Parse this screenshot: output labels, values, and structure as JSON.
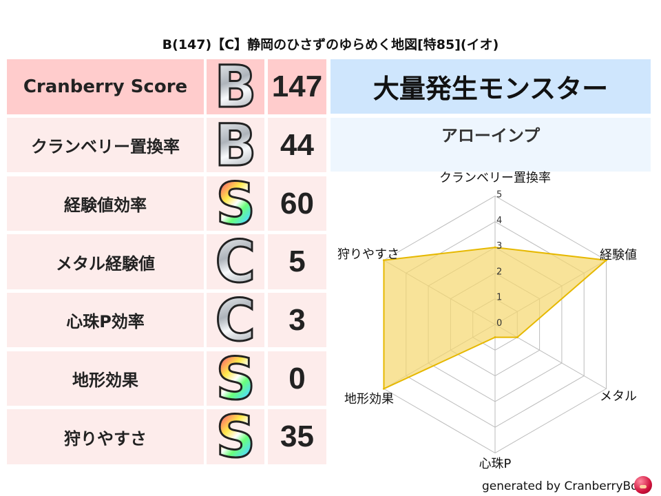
{
  "title": "B(147)【C】静岡のひさずのゆらめく地図[特85](イオ)",
  "score_table": {
    "header": {
      "label": "Cranberry Score",
      "grade": "B",
      "value": "147"
    },
    "rows": [
      {
        "label": "クランベリー置換率",
        "grade": "B",
        "value": "44"
      },
      {
        "label": "経験値効率",
        "grade": "S",
        "value": "60"
      },
      {
        "label": "メタル経験値",
        "grade": "C",
        "value": "5"
      },
      {
        "label": "心珠P効率",
        "grade": "C",
        "value": "3"
      },
      {
        "label": "地形効果",
        "grade": "S",
        "value": "0"
      },
      {
        "label": "狩りやすさ",
        "grade": "S",
        "value": "35"
      }
    ]
  },
  "monster_panel": {
    "heading": "大量発生モンスター",
    "monster": "アローインプ"
  },
  "colors": {
    "header_bg": "#ffcccc",
    "row_bg": "#fdeceb",
    "panel_header_bg": "#cfe6fd",
    "panel_sub_bg": "#eef6fe",
    "radar_fill": "#f5d76e",
    "radar_stroke": "#e6b800"
  },
  "chart_data": {
    "type": "radar",
    "axes": [
      "クランベリー置換率",
      "経験値",
      "メタル",
      "心珠P",
      "地形効果",
      "狩りやすさ"
    ],
    "values": [
      3,
      5,
      1,
      0.5,
      5,
      5
    ],
    "range": [
      0,
      5
    ],
    "ticks": [
      "0",
      "1",
      "2",
      "3",
      "4",
      "5"
    ],
    "grid": true
  },
  "footer": "generated by CranberryBot"
}
